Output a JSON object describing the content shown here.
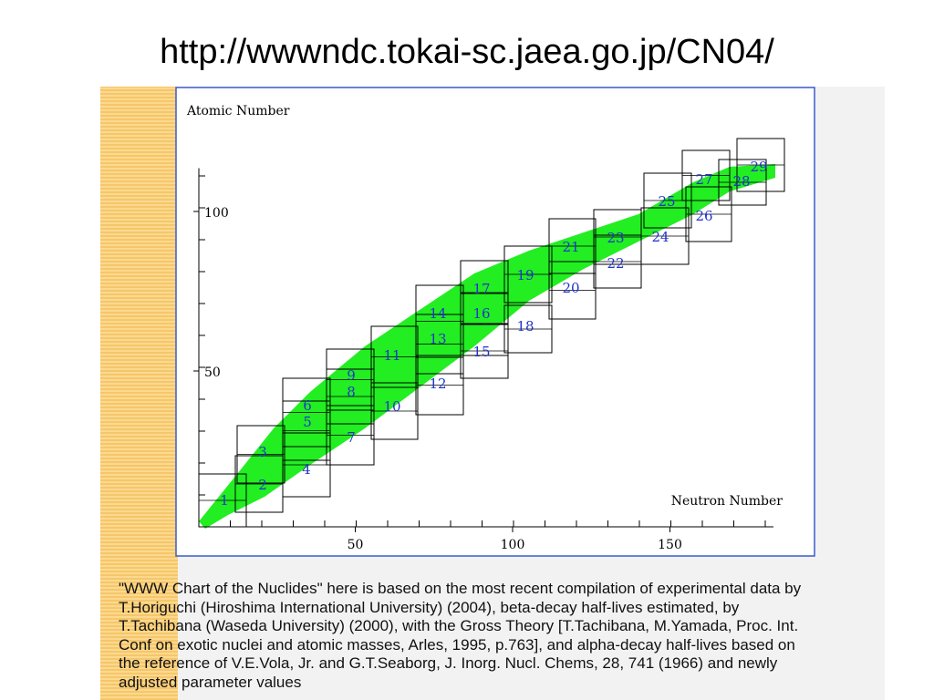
{
  "header": {
    "title": "http://wwwndc.tokai-sc.jaea.go.jp/CN04/"
  },
  "figure": {
    "y_axis_label": "Atomic Number",
    "x_axis_label": "Neutron Number",
    "xlim": [
      0,
      183
    ],
    "ylim": [
      0,
      115
    ],
    "xticks": [
      50,
      100,
      150
    ],
    "yticks": [
      50,
      100
    ],
    "regions": [
      "1",
      "2",
      "3",
      "4",
      "5",
      "6",
      "7",
      "8",
      "9",
      "10",
      "11",
      "12",
      "13",
      "14",
      "15",
      "16",
      "17",
      "18",
      "19",
      "20",
      "21",
      "22",
      "23",
      "24",
      "25",
      "26",
      "27",
      "28",
      "29"
    ]
  },
  "body": {
    "lines": [
      "\"WWW Chart of the Nuclides\" here is based on the most recent compilation of experimental data by",
      "T.Horiguchi (Hiroshima International University) (2004), beta-decay half-lives estimated, by",
      "T.Tachibana (Waseda University) (2000), with the Gross Theory [T.Tachibana, M.Yamada, Proc. Int.",
      "Conf on exotic nuclei and atomic masses, Arles, 1995, p.763], and alpha-decay half-lives based on",
      "the reference of V.E.Vola, Jr. and G.T.Seaborg, J. Inorg. Nucl. Chems, 28, 741 (1966) and newly",
      "adjusted parameter values"
    ]
  }
}
